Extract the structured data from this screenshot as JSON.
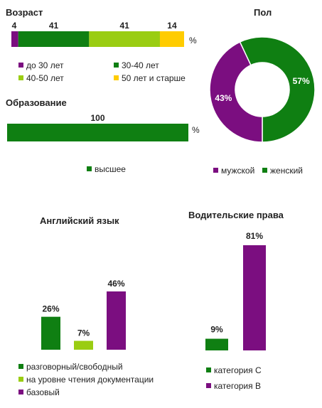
{
  "colors": {
    "purple": "#7B0E80",
    "dark_green": "#0F7F12",
    "light_green": "#9ACD12",
    "yellow": "#FFCC00"
  },
  "chart_data": [
    {
      "id": "age",
      "type": "bar",
      "stacked": true,
      "orientation": "horizontal",
      "title": "Возраст",
      "unit_label": "%",
      "series": [
        {
          "name": "до 30 лет",
          "value": 4,
          "color": "#7B0E80"
        },
        {
          "name": "30-40  лет",
          "value": 41,
          "color": "#0F7F12"
        },
        {
          "name": "40-50  лет",
          "value": 41,
          "color": "#9ACD12"
        },
        {
          "name": "50 лет и старше",
          "value": 14,
          "color": "#FFCC00"
        }
      ]
    },
    {
      "id": "gender",
      "type": "pie",
      "donut": true,
      "title": "Пол",
      "slices": [
        {
          "name": "мужской",
          "value": 43,
          "label": "43%",
          "color": "#7B0E80"
        },
        {
          "name": "женский",
          "value": 57,
          "label": "57%",
          "color": "#0F7F12"
        }
      ]
    },
    {
      "id": "education",
      "type": "bar",
      "orientation": "horizontal",
      "title": "Образование",
      "unit_label": "%",
      "series": [
        {
          "name": "высшее",
          "value": 100,
          "color": "#0F7F12"
        }
      ]
    },
    {
      "id": "english",
      "type": "bar",
      "title": "Английский язык",
      "ylim": [
        0,
        46
      ],
      "series": [
        {
          "name": "разговорный/свободный",
          "value": 26,
          "label": "26%",
          "color": "#0F7F12"
        },
        {
          "name": "на уровне чтения документации",
          "value": 7,
          "label": "7%",
          "color": "#9ACD12"
        },
        {
          "name": "базовый",
          "value": 46,
          "label": "46%",
          "color": "#7B0E80"
        }
      ]
    },
    {
      "id": "license",
      "type": "bar",
      "title": "Водительские права",
      "ylim": [
        0,
        81
      ],
      "series": [
        {
          "name": "категория С",
          "value": 9,
          "label": "9%",
          "color": "#0F7F12"
        },
        {
          "name": "категория В",
          "value": 81,
          "label": "81%",
          "color": "#7B0E80"
        }
      ]
    }
  ]
}
